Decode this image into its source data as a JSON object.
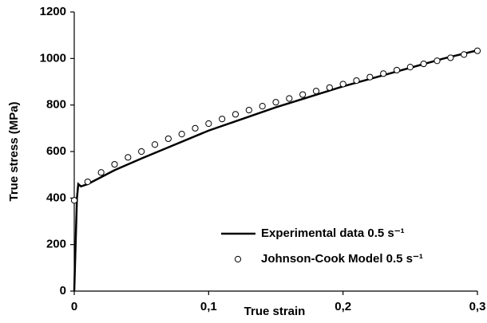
{
  "chart_data": {
    "type": "line",
    "xlabel": "True strain",
    "ylabel": "True stress (MPa)",
    "xlim": [
      0,
      0.3
    ],
    "xticks": [
      0,
      {
        "value": 0.1,
        "label": "0,1"
      },
      {
        "value": 0.2,
        "label": "0,2"
      },
      {
        "value": 0.3,
        "label": "0,3"
      }
    ],
    "ylim": [
      0,
      1200
    ],
    "yticks": [
      0,
      200,
      400,
      600,
      800,
      1000,
      1200
    ],
    "grid": false,
    "legend": "lower right",
    "series": [
      {
        "name": "Experimental data 0.5 s⁻¹",
        "type": "line",
        "color": "#000000",
        "x": [
          0,
          0.002,
          0.003,
          0.005,
          0.01,
          0.02,
          0.03,
          0.05,
          0.075,
          0.1,
          0.125,
          0.15,
          0.175,
          0.2,
          0.225,
          0.25,
          0.275,
          0.3
        ],
        "values": [
          0,
          400,
          460,
          450,
          460,
          490,
          520,
          570,
          630,
          690,
          740,
          790,
          835,
          880,
          920,
          960,
          1000,
          1035
        ]
      },
      {
        "name": "Johnson-Cook Model 0.5 s⁻¹",
        "type": "scatter",
        "color": "#000000",
        "x": [
          0,
          0.01,
          0.02,
          0.03,
          0.04,
          0.05,
          0.06,
          0.07,
          0.08,
          0.09,
          0.1,
          0.11,
          0.12,
          0.13,
          0.14,
          0.15,
          0.16,
          0.17,
          0.18,
          0.19,
          0.2,
          0.21,
          0.22,
          0.23,
          0.24,
          0.25,
          0.26,
          0.27,
          0.28,
          0.29,
          0.3
        ],
        "values": [
          390,
          470,
          510,
          545,
          575,
          600,
          630,
          655,
          675,
          700,
          720,
          740,
          760,
          778,
          795,
          812,
          828,
          845,
          860,
          875,
          890,
          905,
          920,
          935,
          950,
          963,
          977,
          990,
          1003,
          1017,
          1033
        ]
      }
    ]
  }
}
